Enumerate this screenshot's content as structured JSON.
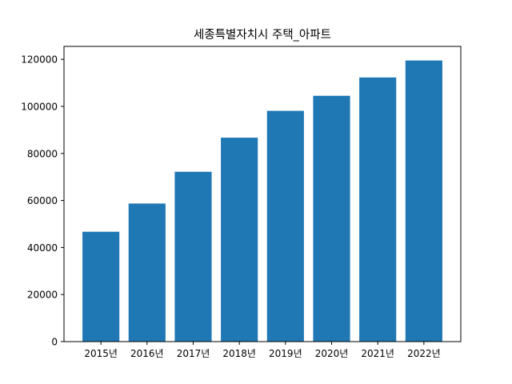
{
  "chart_data": {
    "type": "bar",
    "title": "세종특별자치시 주택_아파트",
    "xlabel": "",
    "ylabel": "",
    "categories": [
      "2015년",
      "2016년",
      "2017년",
      "2018년",
      "2019년",
      "2020년",
      "2021년",
      "2022년"
    ],
    "values": [
      46700,
      58700,
      72200,
      86700,
      98100,
      104500,
      112300,
      119500
    ],
    "ylim": [
      0,
      125500
    ],
    "yticks": [
      0,
      20000,
      40000,
      60000,
      80000,
      100000,
      120000
    ],
    "ytick_labels": [
      "0",
      "20000",
      "40000",
      "60000",
      "80000",
      "100000",
      "120000"
    ],
    "grid": false,
    "colors": {
      "bar": "#1f77b4",
      "axis": "#000000",
      "background": "#ffffff"
    }
  }
}
